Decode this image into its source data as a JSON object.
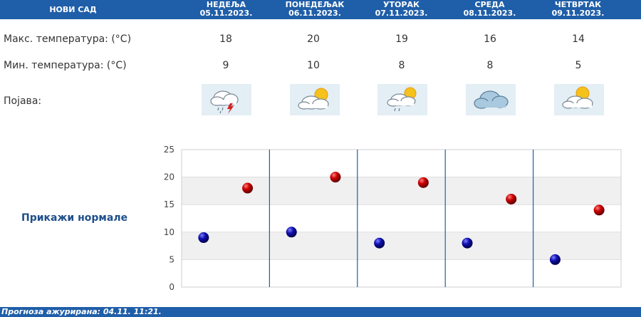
{
  "header": {
    "city": "НОВИ САД",
    "days": [
      {
        "name": "НЕДЕЉА",
        "date": "05.11.2023."
      },
      {
        "name": "ПОНЕДЕЉАК",
        "date": "06.11.2023."
      },
      {
        "name": "УТОРАК",
        "date": "07.11.2023."
      },
      {
        "name": "СРЕДА",
        "date": "08.11.2023."
      },
      {
        "name": "ЧЕТВРТАК",
        "date": "09.11.2023."
      }
    ]
  },
  "rows": {
    "max_label": "Макс. температура: (°C)",
    "min_label": "Мин. температура: (°C)",
    "phenomena_label": "Појава:",
    "max": [
      "18",
      "20",
      "19",
      "16",
      "14"
    ],
    "min": [
      "9",
      "10",
      "8",
      "8",
      "5"
    ],
    "icons": [
      "cloud-rain-lightning-icon",
      "partly-cloudy-icon",
      "partly-cloudy-drizzle-icon",
      "cloud-icon",
      "partly-cloudy-icon"
    ]
  },
  "normals_link": "Прикажи нормале",
  "footer": {
    "text": "Прогноза ажурирана:  04.11.  11:21."
  },
  "colors": {
    "header_bg": "#1f5ea8",
    "max_point": "#cc0000",
    "min_point": "#1010b0"
  },
  "chart_data": {
    "type": "scatter",
    "categories": [
      "05.11.2023.",
      "06.11.2023.",
      "07.11.2023.",
      "08.11.2023.",
      "09.11.2023."
    ],
    "series": [
      {
        "values": [
          18,
          20,
          19,
          16,
          14
        ]
      },
      {
        "values": [
          9,
          10,
          8,
          8,
          5
        ]
      }
    ],
    "ylim": [
      0,
      25
    ],
    "yticks": [
      "0",
      "5",
      "10",
      "15",
      "20",
      "25"
    ],
    "grid": "alternating horizontal bands"
  }
}
